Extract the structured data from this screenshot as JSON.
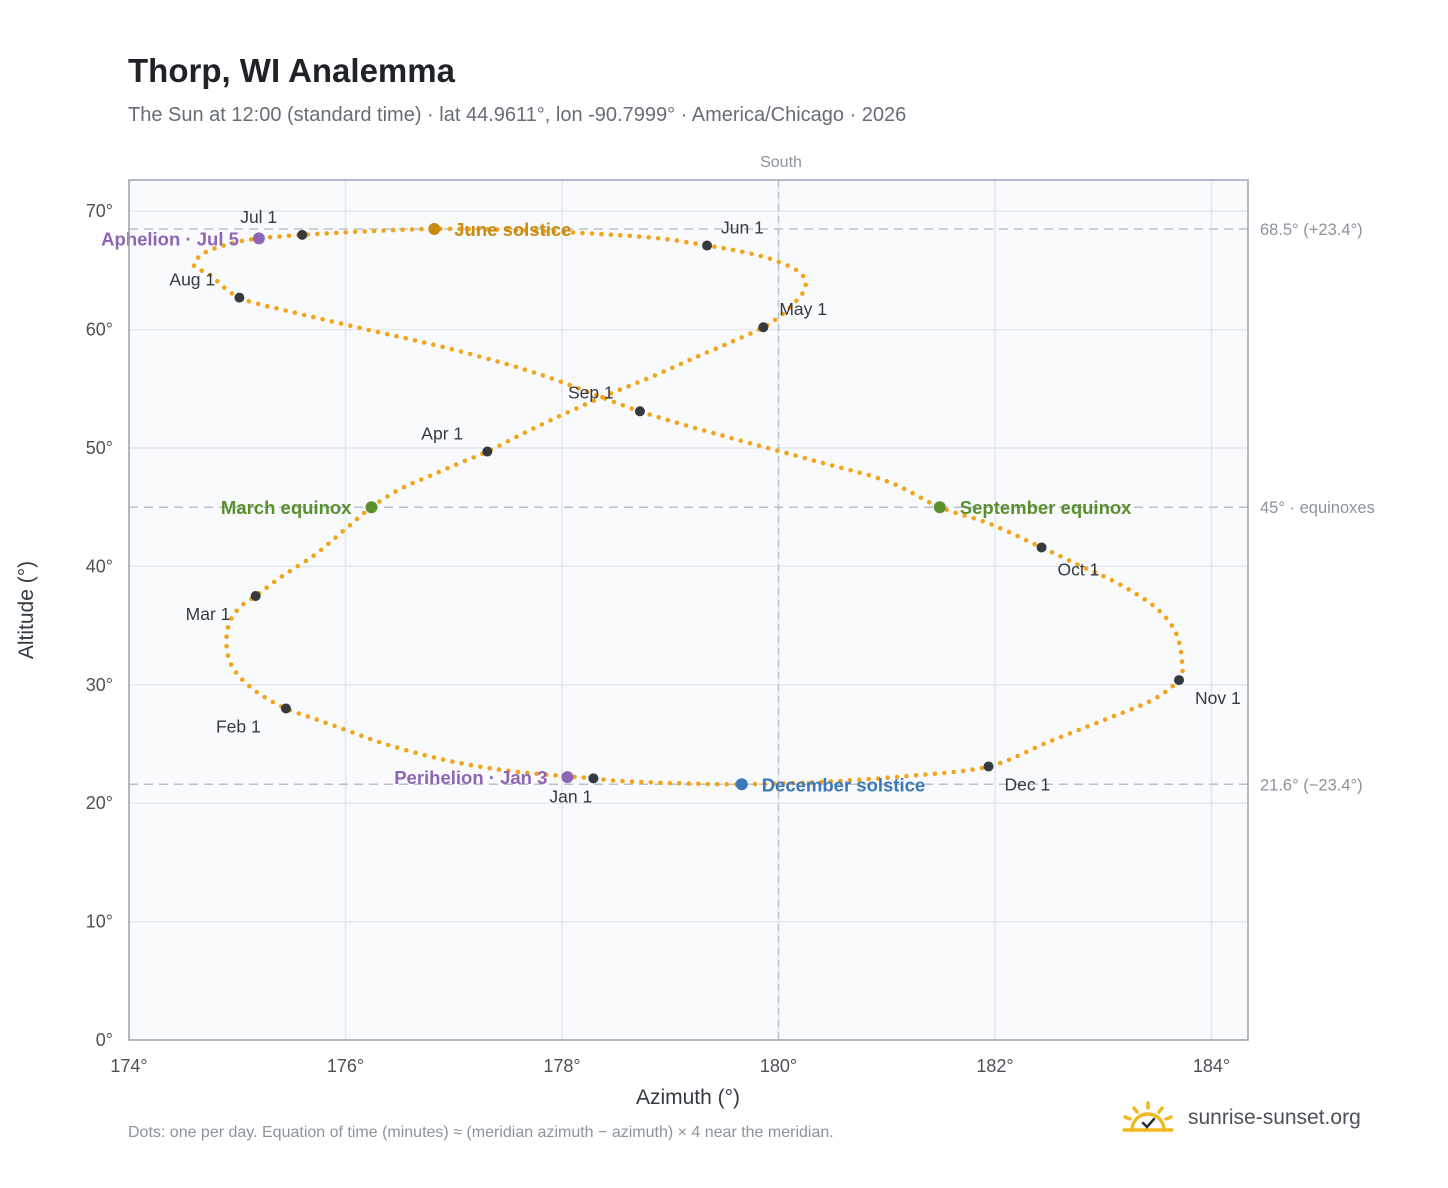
{
  "chart_data": {
    "type": "scatter",
    "title": "Thorp, WI Analemma",
    "subtitle": "The Sun at 12:00 (standard time) · lat 44.9611°, lon -90.7999° · America/Chicago · 2026",
    "xlabel": "Azimuth (°)",
    "ylabel": "Altitude (°)",
    "xlim": [
      174,
      184.3
    ],
    "ylim": [
      0,
      72.5
    ],
    "x_ticks": [
      "174°",
      "176°",
      "178°",
      "180°",
      "182°",
      "184°"
    ],
    "y_ticks": [
      "0°",
      "10°",
      "20°",
      "30°",
      "40°",
      "50°",
      "60°",
      "70°"
    ],
    "top_label": "South",
    "reference_lines": [
      {
        "y": 68.5,
        "label": "68.5° (+23.4°)"
      },
      {
        "y": 45,
        "label": "45° · equinoxes"
      },
      {
        "y": 21.6,
        "label": "21.6° (−23.4°)"
      }
    ],
    "meridian_x": 180,
    "daily_points": [
      [
        178.29,
        22.1
      ],
      [
        177.87,
        22.4
      ],
      [
        177.45,
        22.8
      ],
      [
        177.05,
        23.4
      ],
      [
        176.67,
        24.2
      ],
      [
        176.3,
        25.2
      ],
      [
        175.97,
        26.3
      ],
      [
        175.69,
        27.2
      ],
      [
        175.45,
        28.0
      ],
      [
        175.21,
        29.2
      ],
      [
        175.03,
        30.6
      ],
      [
        174.93,
        32.0
      ],
      [
        174.9,
        33.7
      ],
      [
        174.93,
        35.3
      ],
      [
        175.03,
        36.6
      ],
      [
        175.17,
        37.5
      ],
      [
        175.42,
        39.2
      ],
      [
        175.72,
        41.0
      ],
      [
        175.98,
        43.0
      ],
      [
        176.24,
        45.0
      ],
      [
        176.5,
        46.5
      ],
      [
        176.82,
        47.8
      ],
      [
        177.1,
        48.9
      ],
      [
        177.31,
        49.7
      ],
      [
        177.68,
        51.4
      ],
      [
        178.05,
        53.0
      ],
      [
        178.45,
        54.6
      ],
      [
        178.85,
        56.1
      ],
      [
        179.22,
        57.6
      ],
      [
        179.55,
        58.9
      ],
      [
        179.86,
        60.2
      ],
      [
        180.05,
        61.4
      ],
      [
        180.18,
        62.6
      ],
      [
        180.25,
        63.6
      ],
      [
        180.2,
        64.8
      ],
      [
        179.95,
        65.9
      ],
      [
        179.65,
        66.6
      ],
      [
        179.34,
        67.1
      ],
      [
        178.9,
        67.7
      ],
      [
        178.3,
        68.1
      ],
      [
        177.6,
        68.4
      ],
      [
        176.82,
        68.5
      ],
      [
        176.2,
        68.3
      ],
      [
        175.6,
        68.0
      ],
      [
        175.2,
        67.7
      ],
      [
        174.95,
        67.3
      ],
      [
        174.7,
        66.5
      ],
      [
        174.6,
        65.4
      ],
      [
        174.75,
        64.6
      ],
      [
        175.02,
        62.7
      ],
      [
        175.5,
        61.5
      ],
      [
        176.2,
        60.0
      ],
      [
        177.0,
        58.3
      ],
      [
        177.8,
        56.2
      ],
      [
        178.72,
        53.1
      ],
      [
        179.5,
        51.0
      ],
      [
        180.3,
        49.0
      ],
      [
        181.0,
        47.2
      ],
      [
        181.49,
        45.0
      ],
      [
        181.95,
        43.6
      ],
      [
        182.43,
        41.6
      ],
      [
        182.8,
        40.0
      ],
      [
        183.15,
        38.5
      ],
      [
        183.5,
        36.4
      ],
      [
        183.68,
        34.2
      ],
      [
        183.73,
        31.5
      ],
      [
        183.7,
        30.4
      ],
      [
        183.45,
        28.7
      ],
      [
        183.0,
        27.0
      ],
      [
        182.5,
        25.2
      ],
      [
        181.94,
        23.1
      ],
      [
        181.2,
        22.3
      ],
      [
        180.4,
        21.8
      ],
      [
        179.66,
        21.6
      ],
      [
        179.0,
        21.7
      ],
      [
        178.5,
        21.9
      ]
    ],
    "month_markers": [
      {
        "label": "Jan 1",
        "az": 178.29,
        "alt": 22.1
      },
      {
        "label": "Feb 1",
        "az": 175.45,
        "alt": 28.0
      },
      {
        "label": "Mar 1",
        "az": 175.17,
        "alt": 37.5
      },
      {
        "label": "Apr 1",
        "az": 177.31,
        "alt": 49.7
      },
      {
        "label": "May 1",
        "az": 179.86,
        "alt": 60.2
      },
      {
        "label": "Jun 1",
        "az": 179.34,
        "alt": 67.1
      },
      {
        "label": "Jul 1",
        "az": 175.6,
        "alt": 68.0
      },
      {
        "label": "Aug 1",
        "az": 175.02,
        "alt": 62.7
      },
      {
        "label": "Sep 1",
        "az": 178.72,
        "alt": 53.1
      },
      {
        "label": "Oct 1",
        "az": 182.43,
        "alt": 41.6
      },
      {
        "label": "Nov 1",
        "az": 183.7,
        "alt": 30.4
      },
      {
        "label": "Dec 1",
        "az": 181.94,
        "alt": 23.1
      }
    ],
    "events": [
      {
        "label": "June solstice",
        "az": 176.82,
        "alt": 68.5,
        "color": "#c98b12"
      },
      {
        "label": "March equinox",
        "az": 176.24,
        "alt": 45.0,
        "color": "#5a8f2e"
      },
      {
        "label": "September equinox",
        "az": 181.49,
        "alt": 45.0,
        "color": "#5a8f2e"
      },
      {
        "label": "December solstice",
        "az": 179.66,
        "alt": 21.6,
        "color": "#3a78b8"
      },
      {
        "label": "Aphelion · Jul 5",
        "az": 175.2,
        "alt": 67.7,
        "color": "#8e65b5"
      },
      {
        "label": "Perihelion · Jan 3",
        "az": 178.05,
        "alt": 22.2,
        "color": "#8e65b5"
      }
    ],
    "colors": {
      "path": "#f2a51a",
      "month_marker": "#343a40",
      "reference_line": "#b8c1cc",
      "plot_background": "#f8fafc",
      "axis": "#9aa5b1"
    },
    "grid": true
  },
  "footnote": "Dots: one per day. Equation of time (minutes) ≈ (meridian azimuth − azimuth) × 4 near the meridian.",
  "brand": {
    "name": "sunrise-sunset.org",
    "logo_icon": "sun-check-icon"
  }
}
